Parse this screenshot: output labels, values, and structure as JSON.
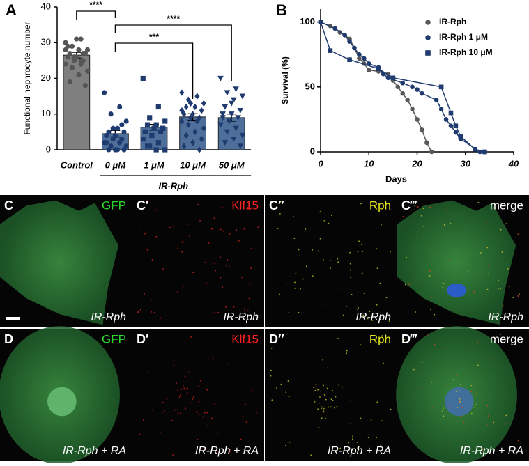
{
  "chart_data": [
    {
      "type": "bar",
      "panel": "A",
      "ylabel": "Functional nephrocyte number",
      "categories": [
        "Control",
        "0 μM",
        "1 μM",
        "10 μM",
        "50 μM"
      ],
      "group_label": "IR-Rph",
      "values": [
        26.5,
        4.5,
        6.3,
        9.2,
        9.0
      ],
      "errors": [
        0.8,
        0.9,
        0.8,
        0.9,
        1.0
      ],
      "colors": [
        "#7f7f7f",
        "#4d6f9a",
        "#4d6f9a",
        "#4d6f9a",
        "#4d6f9a"
      ],
      "point_colors": [
        "#555555",
        "#1f3a6e",
        "#1f3a6e",
        "#1f3a6e",
        "#1f3a6e"
      ],
      "markers": [
        "circle",
        "circle",
        "square",
        "diamond",
        "triangle"
      ],
      "points": [
        [
          30,
          31,
          29,
          28,
          28,
          27,
          27,
          26,
          26,
          25,
          25,
          24,
          24,
          23,
          22,
          21,
          19,
          18,
          31,
          29,
          27,
          26,
          28,
          25
        ],
        [
          16,
          12,
          10,
          8,
          6,
          5,
          5,
          4,
          4,
          3,
          3,
          2,
          2,
          1,
          1,
          0,
          0,
          0,
          0,
          2,
          7,
          6
        ],
        [
          20,
          12,
          9,
          8,
          7,
          7,
          6,
          6,
          5,
          5,
          4,
          3,
          2,
          1,
          0,
          0,
          1,
          6
        ],
        [
          16,
          15,
          14,
          13,
          12,
          12,
          11,
          10,
          10,
          9,
          9,
          8,
          8,
          7,
          6,
          5,
          4,
          3,
          2,
          1,
          0,
          13,
          11
        ],
        [
          20,
          17,
          16,
          15,
          14,
          12,
          11,
          10,
          10,
          9,
          8,
          7,
          6,
          5,
          4,
          3,
          2,
          1,
          13,
          9
        ]
      ],
      "significance": [
        {
          "pair": [
            "Control",
            "0 μM"
          ],
          "label": "****"
        },
        {
          "pair": [
            "0 μM",
            "10 μM"
          ],
          "label": "***"
        },
        {
          "pair": [
            "0 μM",
            "50 μM"
          ],
          "label": "****"
        }
      ],
      "ylim": [
        0,
        40
      ],
      "yticks": [
        0,
        10,
        20,
        30,
        40
      ]
    },
    {
      "type": "line",
      "panel": "B",
      "xlabel": "Days",
      "ylabel": "Survival (%)",
      "xlim": [
        0,
        40
      ],
      "xticks": [
        0,
        10,
        20,
        30,
        40
      ],
      "ylim": [
        0,
        110
      ],
      "yticks": [
        0,
        50,
        100
      ],
      "series": [
        {
          "name": "IR-Rph",
          "color": "#595959",
          "marker": "circle",
          "x": [
            0,
            2,
            3,
            4,
            5,
            6,
            7,
            8,
            9,
            10,
            12,
            14,
            15,
            16,
            17,
            18,
            19,
            20,
            21,
            22,
            23
          ],
          "values": [
            100,
            97,
            95,
            92,
            90,
            87,
            80,
            72,
            68,
            63,
            62,
            60,
            55,
            50,
            45,
            40,
            33,
            25,
            17,
            7,
            0
          ]
        },
        {
          "name": "IR-Rph 1 μM",
          "color": "#1f3a6e",
          "marker": "circle",
          "x": [
            0,
            3,
            5,
            6,
            7,
            8,
            9,
            10,
            12,
            13,
            14,
            17,
            19,
            20,
            21,
            24,
            25,
            26,
            27,
            28,
            29,
            33,
            34
          ],
          "values": [
            100,
            95,
            90,
            85,
            80,
            75,
            72,
            68,
            65,
            60,
            57,
            53,
            50,
            48,
            45,
            40,
            33,
            25,
            20,
            15,
            10,
            0,
            0
          ]
        },
        {
          "name": "IR-Rph 10  μM",
          "color": "#1f3a6e",
          "marker": "square",
          "x": [
            0,
            2,
            6,
            12,
            15,
            25,
            27,
            28,
            29,
            32,
            34
          ],
          "values": [
            100,
            78,
            71,
            64,
            57,
            50,
            30,
            20,
            12,
            2,
            0
          ]
        }
      ]
    }
  ],
  "images": [
    {
      "panels": [
        {
          "label": "C",
          "channel": "GFP",
          "color": "#2bd92b",
          "caption": "IR-Rph"
        },
        {
          "label": "C′",
          "channel": "Klf15",
          "color": "#ff2020",
          "caption": "IR-Rph"
        },
        {
          "label": "C″",
          "channel": "Rph",
          "color": "#e6e619",
          "caption": "IR-Rph"
        },
        {
          "label": "C‴",
          "channel": "merge",
          "color": "#ffffff",
          "caption": "IR-Rph"
        }
      ]
    },
    {
      "panels": [
        {
          "label": "D",
          "channel": "GFP",
          "color": "#2bd92b",
          "caption": "IR-Rph + RA"
        },
        {
          "label": "D′",
          "channel": "Klf15",
          "color": "#ff2020",
          "caption": "IR-Rph + RA"
        },
        {
          "label": "D″",
          "channel": "Rph",
          "color": "#e6e619",
          "caption": "IR-Rph + RA"
        },
        {
          "label": "D‴",
          "channel": "merge",
          "color": "#ffffff",
          "caption": "IR-Rph + RA"
        }
      ]
    }
  ]
}
